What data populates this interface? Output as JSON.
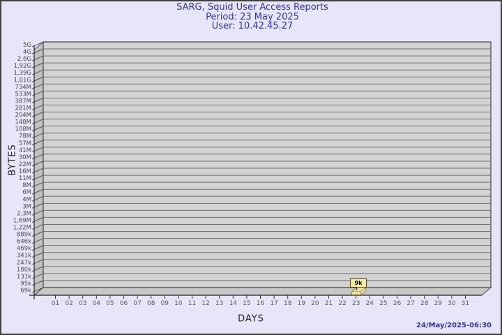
{
  "header": {
    "title": "SARG, Squid User Access Reports",
    "period": "Period: 23 May 2025",
    "user": "User: 10.42.45.27"
  },
  "footer": {
    "timestamp": "24/May/2025-06:30"
  },
  "chart_data": {
    "type": "bar",
    "title": "SARG, Squid User Access Reports",
    "subtitle_period": "Period: 23 May 2025",
    "subtitle_user": "User: 10.42.45.27",
    "xlabel": "DAYS",
    "ylabel": "BYTES",
    "style": "3d-box, horizontal gridlines, gray plot wall",
    "x_categories": [
      "01",
      "02",
      "03",
      "04",
      "05",
      "06",
      "07",
      "08",
      "09",
      "10",
      "11",
      "12",
      "13",
      "14",
      "15",
      "16",
      "17",
      "18",
      "19",
      "20",
      "21",
      "22",
      "23",
      "24",
      "25",
      "26",
      "27",
      "28",
      "29",
      "30",
      "31"
    ],
    "y_tick_labels_top_to_bottom": [
      "5G",
      "4G",
      "2,6G",
      "1,92G",
      "1,39G",
      "1,01G",
      "734M",
      "533M",
      "387M",
      "281M",
      "204M",
      "148M",
      "108M",
      "78M",
      "57M",
      "41M",
      "30M",
      "22M",
      "16M",
      "11M",
      "8M",
      "6M",
      "4M",
      "3M",
      "2,3M",
      "1,69M",
      "1,22M",
      "889k",
      "646k",
      "469k",
      "341k",
      "247k",
      "180k",
      "131k",
      "95k",
      "69k"
    ],
    "values_bytes": [
      0,
      0,
      0,
      0,
      0,
      0,
      0,
      0,
      0,
      0,
      0,
      0,
      0,
      0,
      0,
      0,
      0,
      0,
      0,
      0,
      0,
      0,
      9000,
      0,
      0,
      0,
      0,
      0,
      0,
      0,
      0
    ],
    "value_labels": [
      "",
      "",
      "",
      "",
      "",
      "",
      "",
      "",
      "",
      "",
      "",
      "",
      "",
      "",
      "",
      "",
      "",
      "",
      "",
      "",
      "",
      "",
      "9k",
      "",
      "",
      "",
      "",
      "",
      "",
      "",
      ""
    ],
    "annotation": {
      "day": "23",
      "label": "9k"
    },
    "legend": "none",
    "colors": {
      "page_bg": "#e6e6f8",
      "title_text": "#32329e",
      "plot_wall": "#d3d3d3",
      "side_wall": "#c2c2c2",
      "floor": "#c8c8c8",
      "gridline": "#6f6f6f",
      "axis_line": "#222222",
      "tick_text": "#4a4a4a",
      "bar_fill": "#f1e3a3",
      "bar_edge": "#7d6f33",
      "callout_bg": "#f6eda7",
      "timestamp_text": "#32329e"
    }
  }
}
